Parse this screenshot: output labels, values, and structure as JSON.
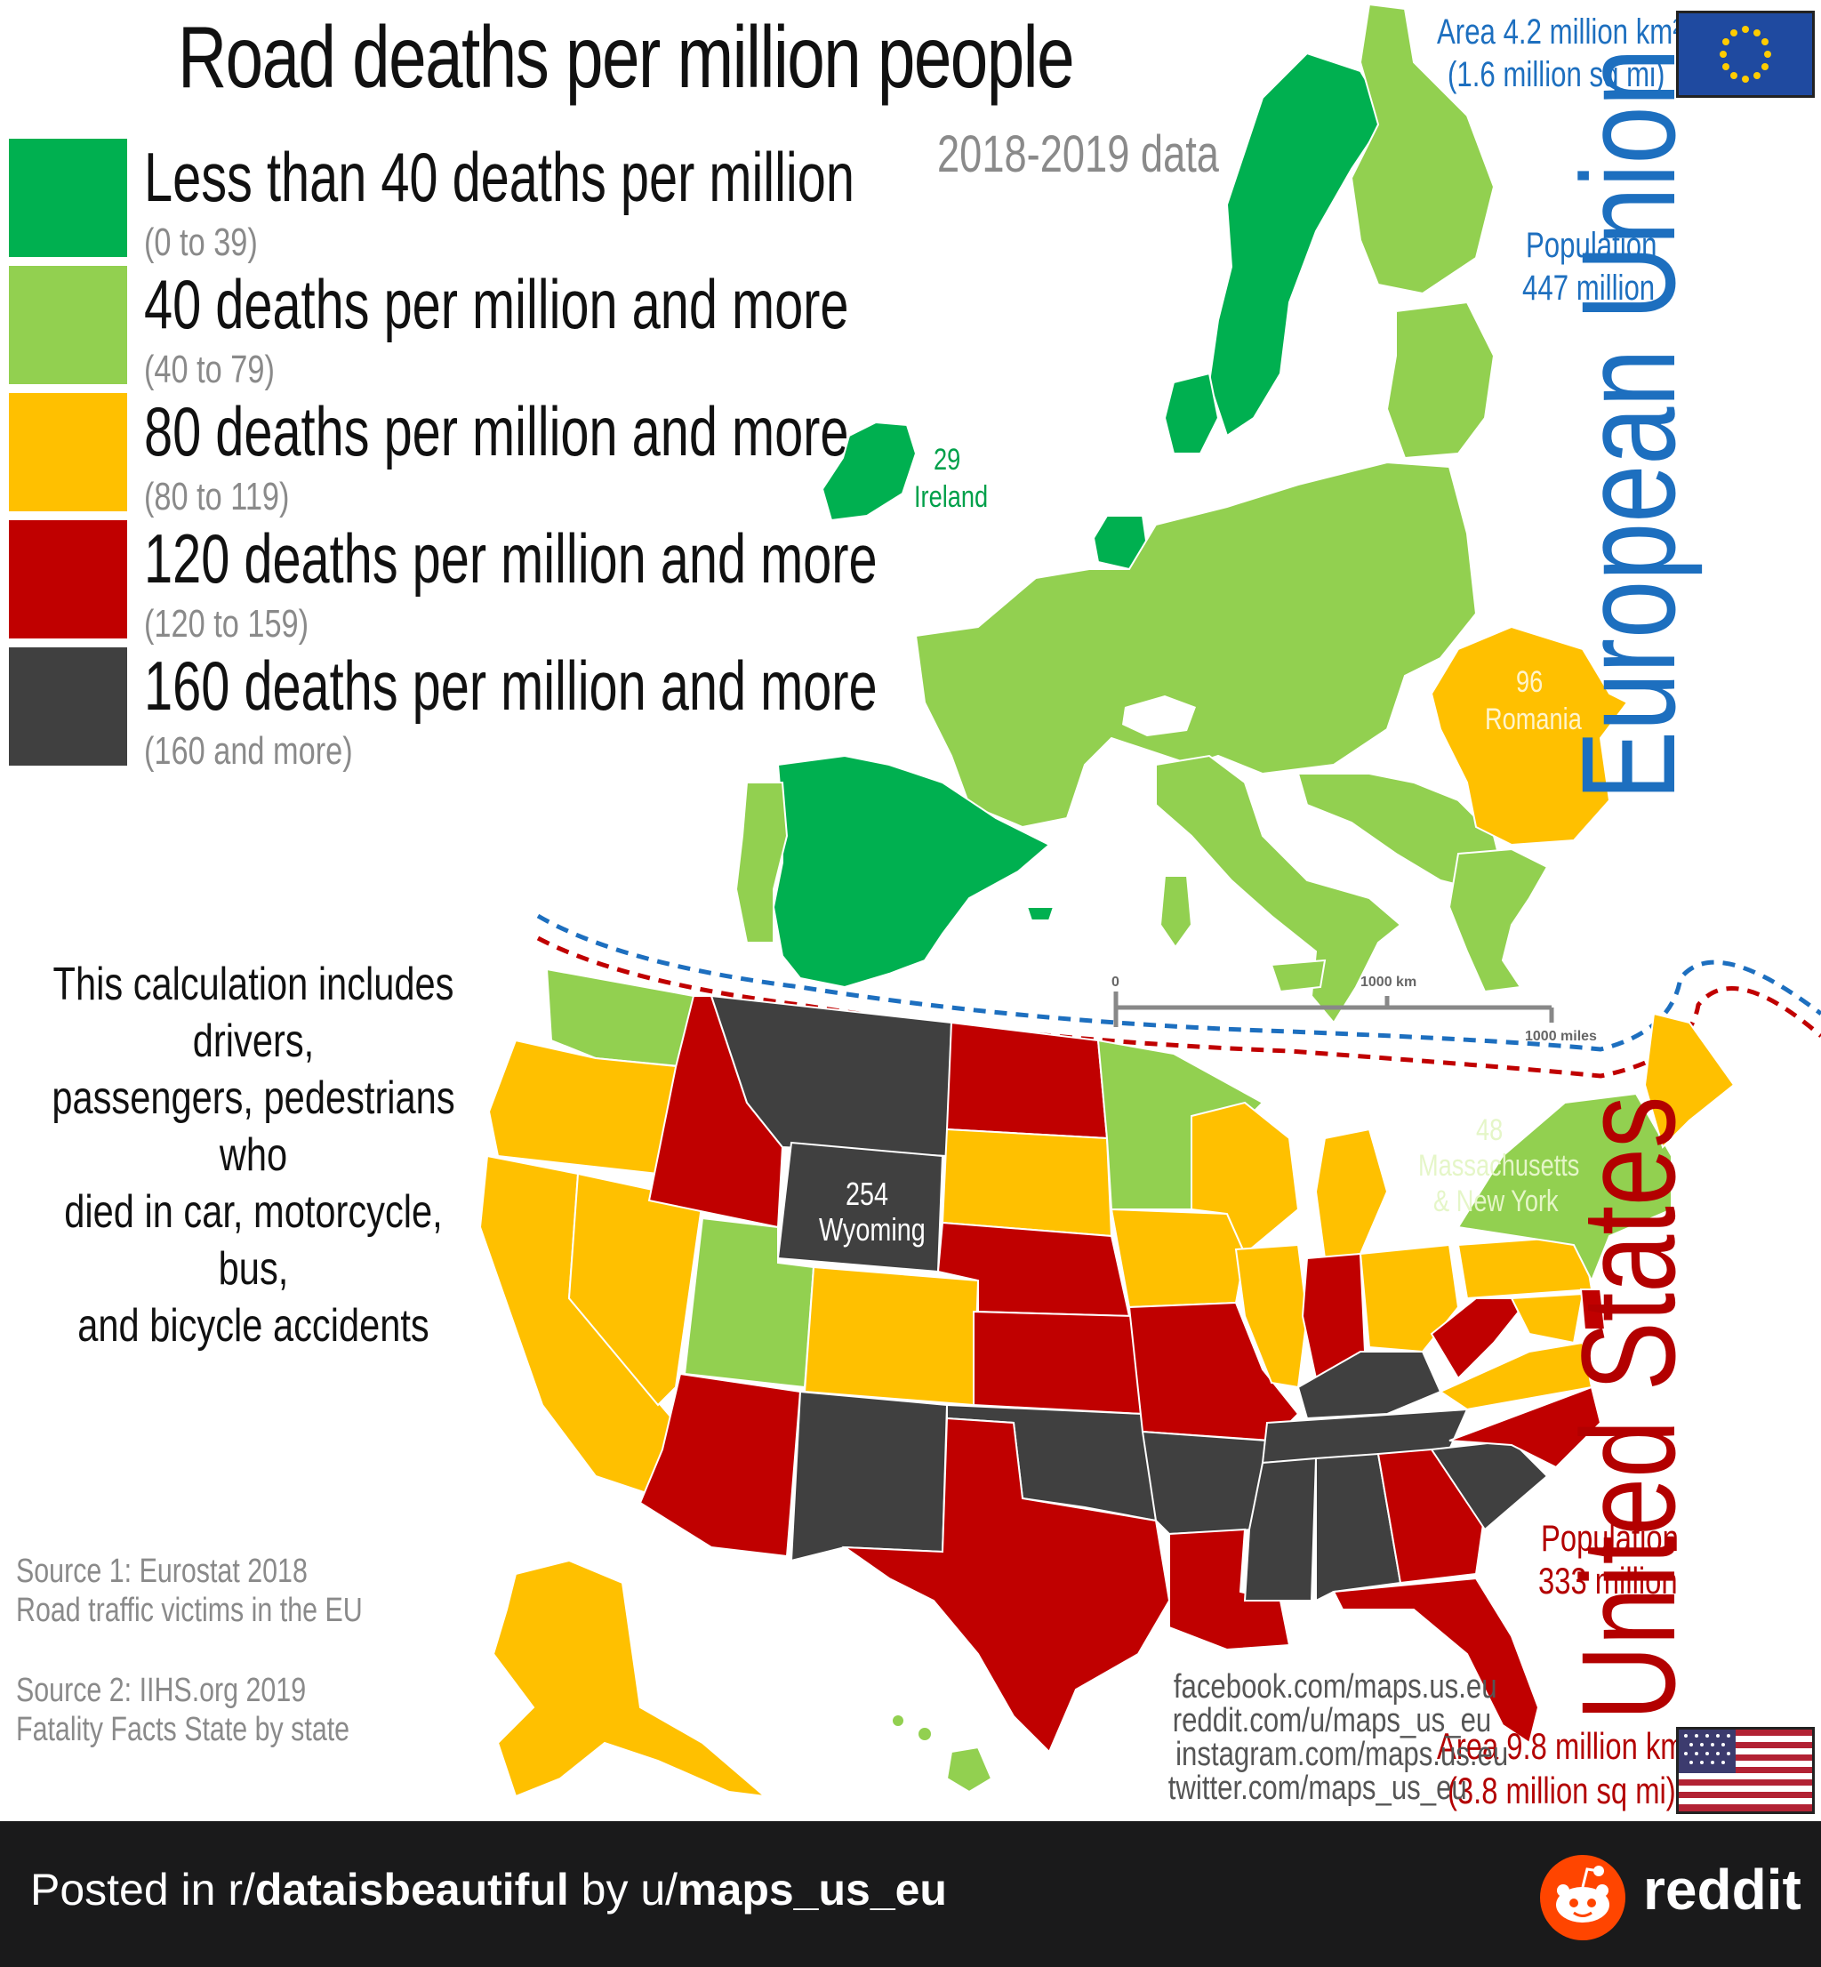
{
  "title": "Road deaths per million people",
  "subtitle": "2018-2019 data",
  "legend": [
    {
      "label": "Less than 40 deaths per million",
      "range": "(0 to 39)",
      "color": "#00b050"
    },
    {
      "label": "40 deaths per million and more",
      "range": "(40 to 79)",
      "color": "#92d050"
    },
    {
      "label": "80 deaths per million and more",
      "range": "(80 to 119)",
      "color": "#ffc000"
    },
    {
      "label": "120 deaths per million and more",
      "range": "(120 to 159)",
      "color": "#c00000"
    },
    {
      "label": "160 deaths per million and more",
      "range": "(160 and more)",
      "color": "#404040"
    }
  ],
  "eu": {
    "name": "European Union",
    "area": "Area 4.2 million km²",
    "area_sq_mi": "(1.6 million sq mi)",
    "population_label": "Population",
    "population": "447 million",
    "color": "#1d6fbf",
    "flag_icon": "eu-flag-icon"
  },
  "us": {
    "name": "United States",
    "area": "Area 9.8 million km²",
    "area_sq_mi": "(3.8 million sq mi)",
    "population_label": "Population",
    "population": "333 million",
    "color": "#b30000",
    "flag_icon": "us-flag-icon"
  },
  "callouts": {
    "ireland": {
      "value": "29",
      "name": "Ireland"
    },
    "romania": {
      "value": "96",
      "name": "Romania"
    },
    "wyoming": {
      "value": "254",
      "name": "Wyoming"
    },
    "ma_ny": {
      "value": "48",
      "name_line1": "Massachusetts",
      "name_line2": "& New York"
    }
  },
  "scale_bar": {
    "zero": "0",
    "km": "1000 km",
    "miles": "1000 miles"
  },
  "note": [
    "This calculation includes drivers,",
    "passengers, pedestrians who",
    "died in car, motorcycle, bus,",
    "and bicycle accidents"
  ],
  "sources": {
    "source1_title": "Source 1: Eurostat 2018",
    "source1_desc": "Road traffic victims in the EU",
    "source2_title": "Source 2: IIHS.org 2019",
    "source2_desc": "Fatality Facts State by state"
  },
  "social": [
    "facebook.com/maps.us.eu",
    "reddit.com/u/maps_us_eu",
    "instagram.com/maps.us.eu",
    "twitter.com/maps_us_eu"
  ],
  "footer": {
    "posted_in": "Posted in r/",
    "subreddit": "dataisbeautiful",
    "by": " by u/",
    "user": "maps_us_eu",
    "brand": "reddit"
  }
}
